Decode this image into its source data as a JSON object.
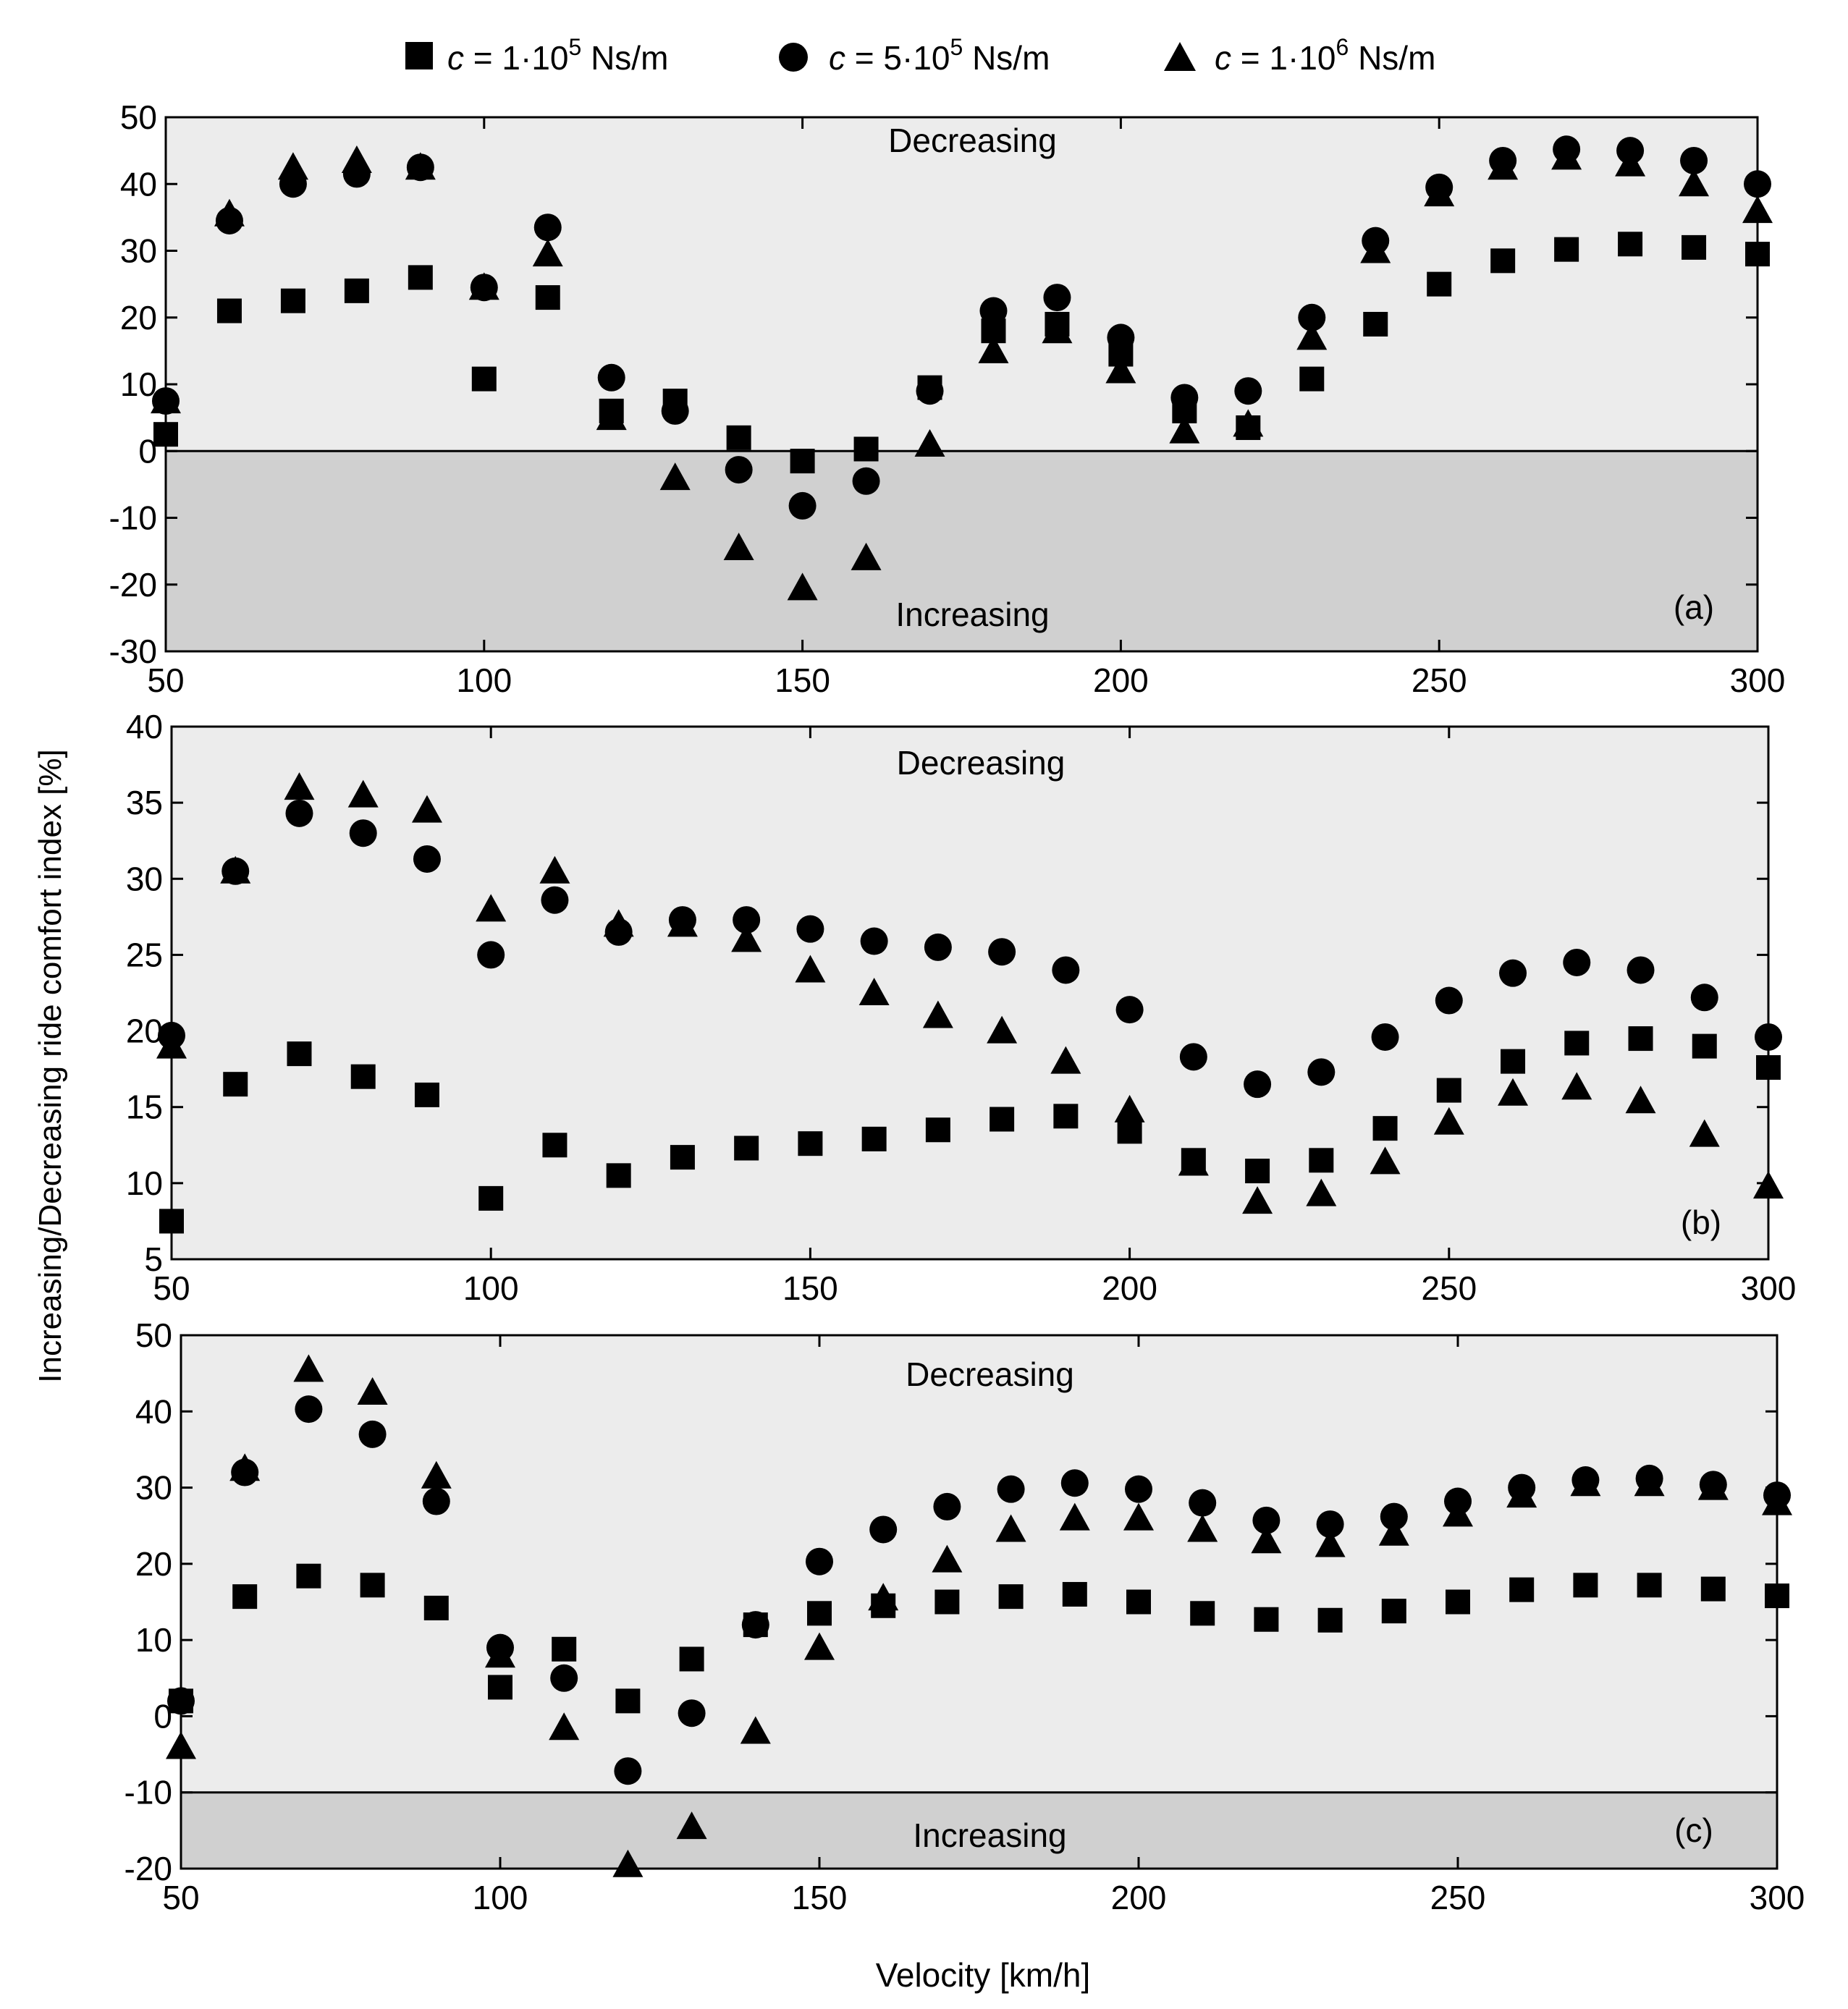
{
  "legend": {
    "items": [
      {
        "marker": "square",
        "prefix": "c",
        "text": "= 1·10",
        "exp": "5",
        "unit": "Ns/m"
      },
      {
        "marker": "circle",
        "prefix": "c",
        "text": "= 5·10",
        "exp": "5",
        "unit": "Ns/m"
      },
      {
        "marker": "triangle",
        "prefix": "c",
        "text": "= 1·10",
        "exp": "6",
        "unit": "Ns/m"
      }
    ]
  },
  "ylabel": "Increasing/Decreasing ride comfort index [%]",
  "xlabel": "Velocity [km/h]",
  "colors": {
    "decreasing_region": "#ececec",
    "increasing_region": "#d0d0d0",
    "marker": "#000000"
  },
  "chart_data": [
    {
      "type": "scatter",
      "panel": "(a)",
      "region_top_label": "Decreasing",
      "region_bottom_label": "Increasing",
      "region_boundary": 0,
      "xlim": [
        50,
        300
      ],
      "ylim": [
        -30,
        50
      ],
      "xticks": [
        50,
        100,
        150,
        200,
        250,
        300
      ],
      "yticks": [
        -30,
        -20,
        -10,
        0,
        10,
        20,
        30,
        40,
        50
      ],
      "x": [
        50,
        60,
        70,
        80,
        90,
        100,
        110,
        120,
        130,
        140,
        150,
        160,
        170,
        180,
        190,
        200,
        210,
        220,
        230,
        240,
        250,
        260,
        270,
        280,
        290,
        300
      ],
      "series": [
        {
          "name": "c = 1·10^5 Ns/m",
          "marker": "square",
          "values": [
            2.5,
            21,
            22.5,
            24,
            26,
            10.8,
            23,
            6,
            7.5,
            2,
            -1.5,
            0.3,
            9.5,
            18,
            19,
            14.5,
            6,
            3.5,
            10.8,
            19,
            25,
            28.5,
            30.2,
            31,
            30.5,
            29.5
          ]
        },
        {
          "name": "c = 5·10^5 Ns/m",
          "marker": "circle",
          "values": [
            7.5,
            34.5,
            40,
            41.5,
            42.5,
            24.5,
            33.5,
            11,
            6,
            -2.8,
            -8.2,
            -4.5,
            9,
            21,
            23,
            17,
            8,
            9,
            20,
            31.5,
            39.5,
            43.5,
            45.2,
            45,
            43.5,
            40
          ]
        },
        {
          "name": "c = 1·10^6 Ns/m",
          "marker": "triangle",
          "values": [
            7.5,
            35.5,
            42.5,
            43.5,
            42.5,
            24.5,
            29.5,
            5,
            -4,
            -14.5,
            -20.5,
            -16,
            1,
            15,
            18,
            12,
            3,
            4,
            17,
            30,
            38.5,
            42.5,
            44,
            43,
            40,
            36
          ]
        }
      ]
    },
    {
      "type": "scatter",
      "panel": "(b)",
      "region_top_label": "Decreasing",
      "xlim": [
        50,
        300
      ],
      "ylim": [
        5,
        40
      ],
      "xticks": [
        50,
        100,
        150,
        200,
        250,
        300
      ],
      "yticks": [
        5,
        10,
        15,
        20,
        25,
        30,
        35,
        40
      ],
      "x": [
        50,
        60,
        70,
        80,
        90,
        100,
        110,
        120,
        130,
        140,
        150,
        160,
        170,
        180,
        190,
        200,
        210,
        220,
        230,
        240,
        250,
        260,
        270,
        280,
        290,
        300
      ],
      "series": [
        {
          "name": "c = 1·10^5 Ns/m",
          "marker": "square",
          "values": [
            7.5,
            16.5,
            18.5,
            17,
            15.8,
            9,
            12.5,
            10.5,
            11.7,
            12.3,
            12.6,
            12.9,
            13.5,
            14.2,
            14.4,
            13.4,
            11.5,
            10.8,
            11.5,
            13.6,
            16.1,
            18,
            19.2,
            19.5,
            19,
            17.6
          ]
        },
        {
          "name": "c = 5·10^5 Ns/m",
          "marker": "circle",
          "values": [
            19.7,
            30.5,
            34.3,
            33,
            31.3,
            25,
            28.6,
            26.5,
            27.3,
            27.3,
            26.7,
            25.9,
            25.5,
            25.2,
            24,
            21.4,
            18.3,
            16.5,
            17.3,
            19.6,
            22,
            23.8,
            24.5,
            24,
            22.2,
            19.6
          ]
        },
        {
          "name": "c = 1·10^6 Ns/m",
          "marker": "triangle",
          "values": [
            19,
            30.5,
            36,
            35.5,
            34.5,
            28,
            30.5,
            27,
            27,
            26,
            24,
            22.5,
            21,
            20,
            18,
            14.8,
            11.3,
            8.8,
            9.3,
            11.4,
            14,
            15.9,
            16.3,
            15.4,
            13.2,
            9.8
          ]
        }
      ]
    },
    {
      "type": "scatter",
      "panel": "(c)",
      "region_top_label": "Decreasing",
      "region_bottom_label": "Increasing",
      "region_boundary": -10,
      "xlim": [
        50,
        300
      ],
      "ylim": [
        -20,
        50
      ],
      "xticks": [
        50,
        100,
        150,
        200,
        250,
        300
      ],
      "yticks": [
        -20,
        -10,
        0,
        10,
        20,
        30,
        40,
        50
      ],
      "x": [
        50,
        60,
        70,
        80,
        90,
        100,
        110,
        120,
        130,
        140,
        150,
        160,
        170,
        180,
        190,
        200,
        210,
        220,
        230,
        240,
        250,
        260,
        270,
        280,
        290,
        300
      ],
      "series": [
        {
          "name": "c = 1·10^5 Ns/m",
          "marker": "square",
          "values": [
            2,
            15.7,
            18.4,
            17.2,
            14.2,
            3.8,
            8.8,
            2,
            7.5,
            12,
            13.5,
            14.5,
            15,
            15.7,
            16,
            15,
            13.5,
            12.7,
            12.6,
            13.8,
            15,
            16.6,
            17.2,
            17.2,
            16.7,
            15.8
          ]
        },
        {
          "name": "c = 5·10^5 Ns/m",
          "marker": "circle",
          "values": [
            2,
            32,
            40.3,
            37,
            28.2,
            9,
            5,
            -7.2,
            0.4,
            12,
            20.3,
            24.5,
            27.5,
            29.8,
            30.6,
            29.8,
            28,
            25.7,
            25.2,
            26.2,
            28.2,
            30,
            31,
            31.2,
            30.4,
            29
          ]
        },
        {
          "name": "c = 1·10^6 Ns/m",
          "marker": "triangle",
          "values": [
            -4,
            32.5,
            45.5,
            42.5,
            31.5,
            8,
            -1.5,
            -19.5,
            -14.5,
            -2,
            9,
            15.5,
            20.5,
            24.5,
            26,
            26,
            24.5,
            23,
            22.5,
            24,
            26.5,
            29,
            30.5,
            30.5,
            30,
            28
          ]
        }
      ]
    }
  ]
}
